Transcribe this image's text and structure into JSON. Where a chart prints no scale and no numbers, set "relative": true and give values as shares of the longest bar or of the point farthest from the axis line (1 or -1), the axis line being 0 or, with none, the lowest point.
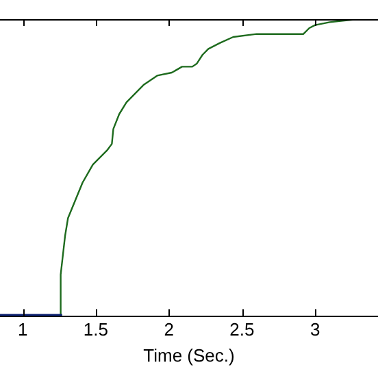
{
  "chart_data": {
    "type": "line",
    "xlabel": "Time (Sec.)",
    "relative": true,
    "tick_labels": "x",
    "grid": false,
    "legend": false,
    "marker": "none",
    "line_style": "solid",
    "xlim": [
      0.845,
      3.43
    ],
    "xticks": [
      1,
      1.5,
      2,
      2.5,
      3
    ],
    "series": [
      {
        "color": "#0a1f6e",
        "x": [
          0.845,
          1.27
        ],
        "values": [
          0,
          0
        ]
      },
      {
        "color": "#1e6b1e",
        "x": [
          1.26,
          1.26,
          1.29,
          1.31,
          1.36,
          1.41,
          1.48,
          1.58,
          1.61,
          1.62,
          1.66,
          1.71,
          1.77,
          1.83,
          1.92,
          2.02,
          2.09,
          2.16,
          2.19,
          2.23,
          2.27,
          2.35,
          2.44,
          2.6,
          2.77,
          2.92,
          2.96,
          3.0,
          3.1,
          3.29,
          3.43
        ],
        "values": [
          0,
          0.14,
          0.27,
          0.33,
          0.39,
          0.45,
          0.51,
          0.56,
          0.58,
          0.63,
          0.68,
          0.72,
          0.75,
          0.78,
          0.81,
          0.82,
          0.84,
          0.84,
          0.85,
          0.88,
          0.9,
          0.92,
          0.94,
          0.95,
          0.95,
          0.95,
          0.97,
          0.98,
          0.99,
          1,
          1
        ]
      }
    ]
  }
}
